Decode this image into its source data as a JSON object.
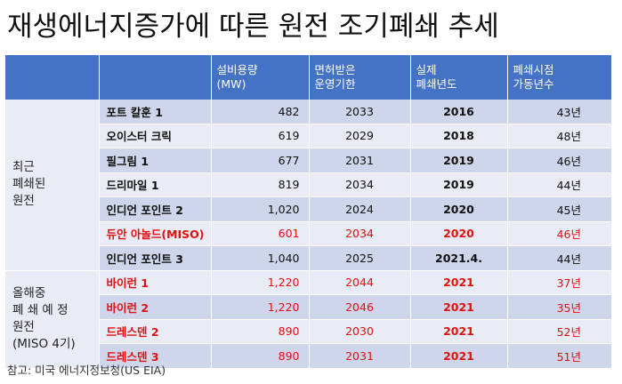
{
  "title": "재생에너지증가에 따른 원전 조기폐쇄 추세",
  "headers": [
    "",
    "",
    "설비용량\n(MW)",
    "면허받은\n운영기한",
    "실제\n폐쇄년도",
    "폐쇄시점\n가동년수"
  ],
  "groups": [
    {
      "label": "최근\n폐쇄된\n원전"
    },
    {
      "label": "올해중\n폐 쇄 예 정\n원전\n(MISO 4기)"
    }
  ],
  "rows": [
    {
      "name": "포트 칼훈 1",
      "capacity": "482",
      "license": "2033",
      "closed": "2016",
      "years": "43년"
    },
    {
      "name": "오이스터 크릭",
      "capacity": "619",
      "license": "2029",
      "closed": "2018",
      "years": "48년"
    },
    {
      "name": "필그림 1",
      "capacity": "677",
      "license": "2031",
      "closed": "2019",
      "years": "46년"
    },
    {
      "name": "드리마일 1",
      "capacity": "819",
      "license": "2034",
      "closed": "2019",
      "years": "44년"
    },
    {
      "name": "인디언 포인트 2",
      "capacity": "1,020",
      "license": "2024",
      "closed": "2020",
      "years": "45년"
    },
    {
      "name": "듀안 아놀드(MISO)",
      "capacity": "601",
      "license": "2034",
      "closed": "2020",
      "years": "46년"
    },
    {
      "name": "인디언 포인트 3",
      "capacity": "1,040",
      "license": "2025",
      "closed": "2021.4.",
      "years": "44년"
    },
    {
      "name": "바이런 1",
      "capacity": "1,220",
      "license": "2044",
      "closed": "2021",
      "years": "37년"
    },
    {
      "name": "바이런 2",
      "capacity": "1,220",
      "license": "2046",
      "closed": "2021",
      "years": "35년"
    },
    {
      "name": "드레스덴 2",
      "capacity": "890",
      "license": "2030",
      "closed": "2021",
      "years": "52년"
    },
    {
      "name": "드레스덴 3",
      "capacity": "890",
      "license": "2031",
      "closed": "2021",
      "years": "51년"
    }
  ],
  "footnote": "참고: 미국 에너지정보청(US EIA)",
  "colors": {
    "header_bg": "#4472c4",
    "row_dark": "#cfd5ea",
    "row_light": "#e9ebf5",
    "highlight_red": "#e01010"
  }
}
